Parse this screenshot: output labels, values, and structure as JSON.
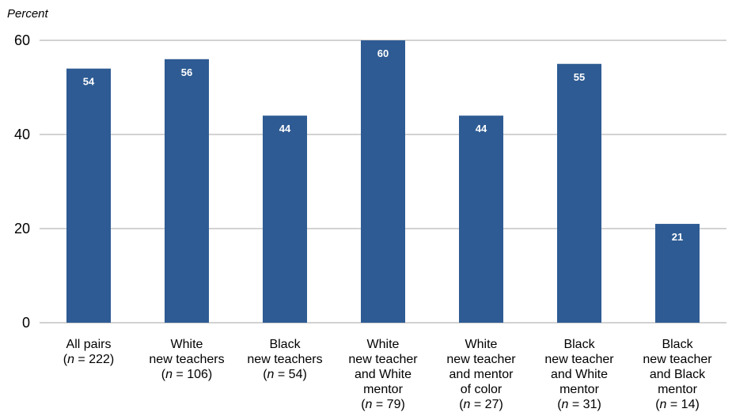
{
  "chart_data": {
    "type": "bar",
    "ylabel": "Percent",
    "ylim": [
      0,
      60
    ],
    "yticks": [
      0,
      20,
      40,
      60
    ],
    "grid": true,
    "bar_color": "#2e5b93",
    "label_color": "#ffffff",
    "categories": [
      {
        "lines": [
          {
            "text": "All pairs"
          },
          {
            "n": "222"
          }
        ]
      },
      {
        "lines": [
          {
            "text": "White"
          },
          {
            "text": "new teachers"
          },
          {
            "n": "106"
          }
        ]
      },
      {
        "lines": [
          {
            "text": "Black"
          },
          {
            "text": "new teachers"
          },
          {
            "n": "54"
          }
        ]
      },
      {
        "lines": [
          {
            "text": "White"
          },
          {
            "text": "new teacher"
          },
          {
            "text": "and White"
          },
          {
            "text": "mentor"
          },
          {
            "n": "79"
          }
        ]
      },
      {
        "lines": [
          {
            "text": "White"
          },
          {
            "text": "new teacher"
          },
          {
            "text": "and mentor"
          },
          {
            "text": "of color"
          },
          {
            "n": "27"
          }
        ]
      },
      {
        "lines": [
          {
            "text": "Black"
          },
          {
            "text": "new teacher"
          },
          {
            "text": "and White"
          },
          {
            "text": "mentor"
          },
          {
            "n": "31"
          }
        ]
      },
      {
        "lines": [
          {
            "text": "Black"
          },
          {
            "text": "new teacher"
          },
          {
            "text": "and Black"
          },
          {
            "text": "mentor"
          },
          {
            "n": "14"
          }
        ]
      }
    ],
    "values": [
      54,
      56,
      44,
      60,
      44,
      55,
      21
    ]
  }
}
